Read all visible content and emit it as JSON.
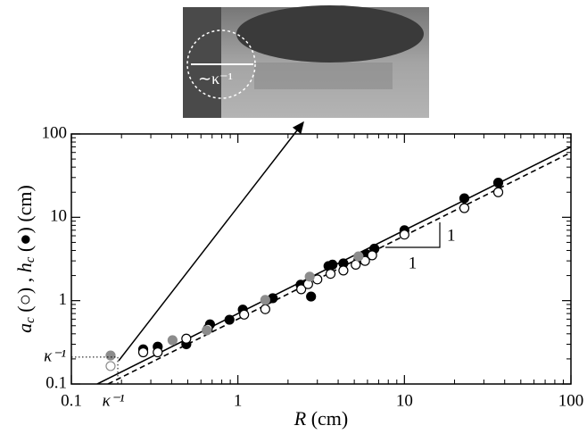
{
  "chart_data": {
    "type": "scatter",
    "x_label_parts": [
      "R",
      " (cm)"
    ],
    "y_label_parts": [
      "a",
      "c",
      " (○) , ",
      "h",
      "c",
      " (●) (cm)"
    ],
    "inset_label": "∼κ⁻¹",
    "log_x": true,
    "log_y": true,
    "xlim": [
      0.1,
      100
    ],
    "ylim": [
      0.1,
      100
    ],
    "xticks": [
      0.1,
      1,
      10,
      100
    ],
    "yticks": [
      0.1,
      1,
      10,
      100
    ],
    "xminorticks": [
      0.2,
      0.3,
      0.4,
      0.5,
      0.6,
      0.7,
      0.8,
      0.9,
      2,
      3,
      4,
      5,
      6,
      7,
      8,
      9,
      20,
      30,
      40,
      50,
      60,
      70,
      80,
      90
    ],
    "yminorticks": [
      0.2,
      0.3,
      0.4,
      0.5,
      0.6,
      0.7,
      0.8,
      0.9,
      2,
      3,
      4,
      5,
      6,
      7,
      8,
      9,
      20,
      30,
      40,
      50,
      60,
      70,
      80,
      90
    ],
    "series": [
      {
        "marker": "filled",
        "color": "#000000",
        "x": [
          0.27,
          0.33,
          0.49,
          0.68,
          0.89,
          1.07,
          1.62,
          2.38,
          2.75,
          3.5,
          3.7,
          4.3,
          5.3,
          5.9,
          6.6,
          10,
          22.9,
          36.6
        ],
        "values": [
          0.26,
          0.28,
          0.3,
          0.52,
          0.59,
          0.78,
          1.07,
          1.55,
          1.12,
          2.6,
          2.7,
          2.8,
          3.1,
          3.6,
          4.2,
          7.0,
          16.9,
          26
        ]
      },
      {
        "marker": "open",
        "color": "#000000",
        "x": [
          0.27,
          0.33,
          0.49,
          0.66,
          1.09,
          1.46,
          2.4,
          2.64,
          3.0,
          3.6,
          4.3,
          5.1,
          5.8,
          6.4,
          10,
          22.9,
          36.6
        ],
        "values": [
          0.24,
          0.24,
          0.35,
          0.46,
          0.68,
          0.79,
          1.37,
          1.58,
          1.8,
          2.1,
          2.3,
          2.7,
          3.0,
          3.5,
          6.2,
          12.9,
          20
        ]
      },
      {
        "marker": "filled",
        "color": "#8c8c8c",
        "x": [
          0.172,
          0.405,
          0.65,
          1.46,
          2.7,
          5.3
        ],
        "values": [
          0.22,
          0.335,
          0.44,
          1.02,
          1.94,
          3.4
        ]
      },
      {
        "marker": "open",
        "color": "#8c8c8c",
        "x": [
          0.172
        ],
        "values": [
          0.164
        ]
      }
    ],
    "lines": [
      {
        "style": "solid",
        "x": [
          0.143,
          100
        ],
        "values": [
          0.1,
          70
        ]
      },
      {
        "style": "dashed",
        "x": [
          0.166,
          100
        ],
        "values": [
          0.1,
          60
        ]
      }
    ],
    "kappa_marker": {
      "x": 0.19,
      "y": 0.21,
      "x_label": "κ⁻¹",
      "y_label": "κ⁻¹"
    },
    "slope_labels": [
      "1",
      "1"
    ]
  }
}
